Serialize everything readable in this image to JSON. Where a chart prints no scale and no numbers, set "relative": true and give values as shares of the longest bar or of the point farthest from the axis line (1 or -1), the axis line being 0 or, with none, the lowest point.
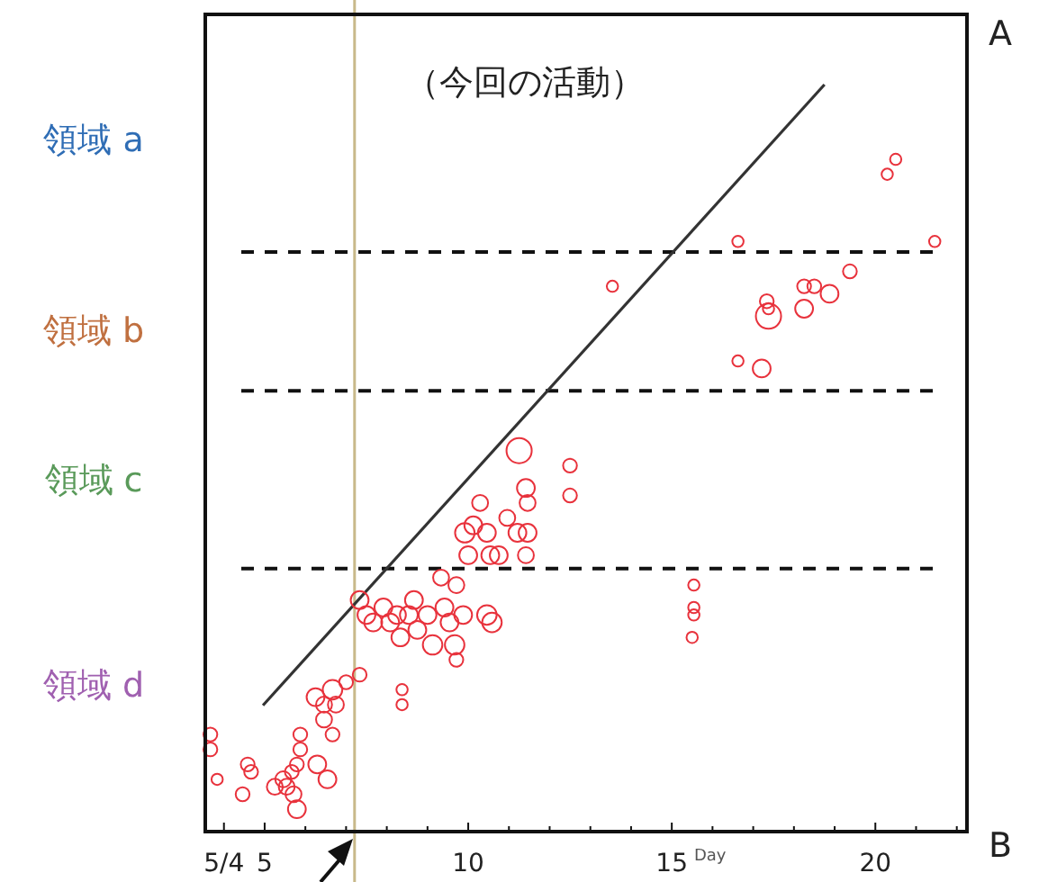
{
  "chart_data": {
    "type": "bubble",
    "title": "（今回の活動）",
    "xlabel": "Day",
    "relative": true,
    "xlim": [
      "--05-03T13:00",
      "--05-22T06:00"
    ],
    "xticks": [
      {
        "value": "--05-04",
        "label": "5/4"
      },
      {
        "value": "--05-05",
        "label": "5"
      },
      {
        "value": "--05-06",
        "label": null
      },
      {
        "value": "--05-07",
        "label": null
      },
      {
        "value": "--05-08",
        "label": null
      },
      {
        "value": "--05-09",
        "label": null
      },
      {
        "value": "--05-10",
        "label": "10"
      },
      {
        "value": "--05-11",
        "label": null
      },
      {
        "value": "--05-12",
        "label": null
      },
      {
        "value": "--05-13",
        "label": null
      },
      {
        "value": "--05-14",
        "label": null
      },
      {
        "value": "--05-15",
        "label": "15"
      },
      {
        "value": "--05-16",
        "label": null
      },
      {
        "value": "--05-17",
        "label": null
      },
      {
        "value": "--05-18",
        "label": null
      },
      {
        "value": "--05-19",
        "label": null
      },
      {
        "value": "--05-20",
        "label": "20"
      },
      {
        "value": "--05-21",
        "label": null
      },
      {
        "value": "--05-22",
        "label": null
      }
    ],
    "series": [
      {
        "marker": "circle",
        "color": "#e8323c",
        "x": [
          "--05-03T16:00",
          "--05-03T16:00",
          "--05-03T20:00",
          "--05-04T11:00",
          "--05-04T14:00",
          "--05-04T16:00",
          "--05-05T06:00",
          "--05-05T11:00",
          "--05-05T13:00",
          "--05-05T17:00",
          "--05-05T19:00",
          "--05-05T16:00",
          "--05-05T19:00",
          "--05-05T21:00",
          "--05-05T21:00",
          "--05-06T07:00",
          "--05-06T13:00",
          "--05-06T16:00",
          "--05-06T06:00",
          "--05-06T11:00",
          "--05-06T11:00",
          "--05-06T16:00",
          "--05-06T18:00",
          "--05-07T00:00",
          "--05-07T08:00",
          "--05-08T09:00",
          "--05-08T09:00",
          "--05-07T08:00",
          "--05-07T12:00",
          "--05-07T16:00",
          "--05-07T22:00",
          "--05-08T02:00",
          "--05-08T06:00",
          "--05-08T08:00",
          "--05-08T13:00",
          "--05-08T16:00",
          "--05-08T18:00",
          "--05-09T00:00",
          "--05-09T03:00",
          "--05-09T10:00",
          "--05-09T13:00",
          "--05-09T16:00",
          "--05-09T17:00",
          "--05-09T21:00",
          "--05-09T08:00",
          "--05-09T17:00",
          "--05-10T00:00",
          "--05-09T22:00",
          "--05-10T03:00",
          "--05-10T07:00",
          "--05-10T11:00",
          "--05-10T13:00",
          "--05-10T11:00",
          "--05-10T14:00",
          "--05-10T18:00",
          "--05-10T23:00",
          "--05-11T05:00",
          "--05-11T06:00",
          "--05-11T10:00",
          "--05-11T11:00",
          "--05-11T11:00",
          "--05-11T10:00",
          "--05-12T12:00",
          "--05-12T12:00",
          "--05-16T15:00",
          "--05-21T11:00",
          "--05-13T13:00",
          "--05-17T08:00",
          "--05-17T09:00",
          "--05-17T09:00",
          "--05-18T06:00",
          "--05-18T12:00",
          "--05-18T06:00",
          "--05-18T21:00",
          "--05-19T09:00",
          "--05-16T15:00",
          "--05-17T05:00",
          "--05-15T13:00",
          "--05-15T13:00",
          "--05-15T13:00",
          "--05-15T12:00",
          "--05-20T12:00",
          "--05-20T07:00"
        ],
        "values": [
          0.13,
          0.11,
          0.07,
          0.05,
          0.09,
          0.08,
          0.06,
          0.07,
          0.06,
          0.05,
          0.03,
          0.08,
          0.09,
          0.11,
          0.13,
          0.09,
          0.07,
          0.13,
          0.18,
          0.17,
          0.15,
          0.19,
          0.17,
          0.2,
          0.21,
          0.19,
          0.17,
          0.31,
          0.29,
          0.28,
          0.3,
          0.28,
          0.29,
          0.26,
          0.29,
          0.31,
          0.27,
          0.29,
          0.25,
          0.3,
          0.28,
          0.25,
          0.23,
          0.29,
          0.34,
          0.33,
          0.37,
          0.4,
          0.41,
          0.44,
          0.4,
          0.37,
          0.29,
          0.28,
          0.37,
          0.42,
          0.4,
          0.51,
          0.46,
          0.44,
          0.4,
          0.37,
          0.49,
          0.45,
          0.79,
          0.79,
          0.73,
          0.71,
          0.7,
          0.69,
          0.73,
          0.73,
          0.7,
          0.72,
          0.75,
          0.63,
          0.62,
          0.33,
          0.3,
          0.29,
          0.26,
          0.9,
          0.88
        ],
        "sizes": [
          0.3,
          0.3,
          0.2,
          0.3,
          0.3,
          0.3,
          0.4,
          0.4,
          0.4,
          0.4,
          0.5,
          0.3,
          0.3,
          0.3,
          0.3,
          0.5,
          0.5,
          0.3,
          0.5,
          0.4,
          0.4,
          0.6,
          0.4,
          0.3,
          0.3,
          0.2,
          0.2,
          0.5,
          0.5,
          0.5,
          0.5,
          0.5,
          0.5,
          0.5,
          0.5,
          0.5,
          0.5,
          0.5,
          0.6,
          0.5,
          0.5,
          0.6,
          0.3,
          0.5,
          0.4,
          0.4,
          0.5,
          0.6,
          0.5,
          0.4,
          0.5,
          0.5,
          0.6,
          0.6,
          0.5,
          0.4,
          0.5,
          1,
          0.5,
          0.4,
          0.5,
          0.4,
          0.3,
          0.3,
          0.2,
          0.2,
          0.2,
          0.3,
          0.2,
          1,
          0.3,
          0.3,
          0.5,
          0.5,
          0.3,
          0.2,
          0.5,
          0.2,
          0.2,
          0.2,
          0.2,
          0.2,
          0.2
        ]
      },
      {
        "type": "line",
        "color": "#333333",
        "x": [
          "--05-04T23:00",
          "--05-18T18:00"
        ],
        "values": [
          0.169,
          1
        ]
      }
    ],
    "ref_lines": [
      {
        "axis": "x",
        "value": "--05-07T05:00",
        "color": "#c8b98a",
        "line_style": "solid"
      },
      {
        "axis": "y",
        "value": 0.776,
        "color": "#111111",
        "line_style": "dashed"
      },
      {
        "axis": "y",
        "value": 0.59,
        "color": "#111111",
        "line_style": "dashed"
      },
      {
        "axis": "y",
        "value": 0.352,
        "color": "#111111",
        "line_style": "dashed"
      }
    ],
    "annotations": [
      "A",
      "B",
      "領域 a",
      "領域 b",
      "領域 c",
      "領域 d"
    ]
  }
}
